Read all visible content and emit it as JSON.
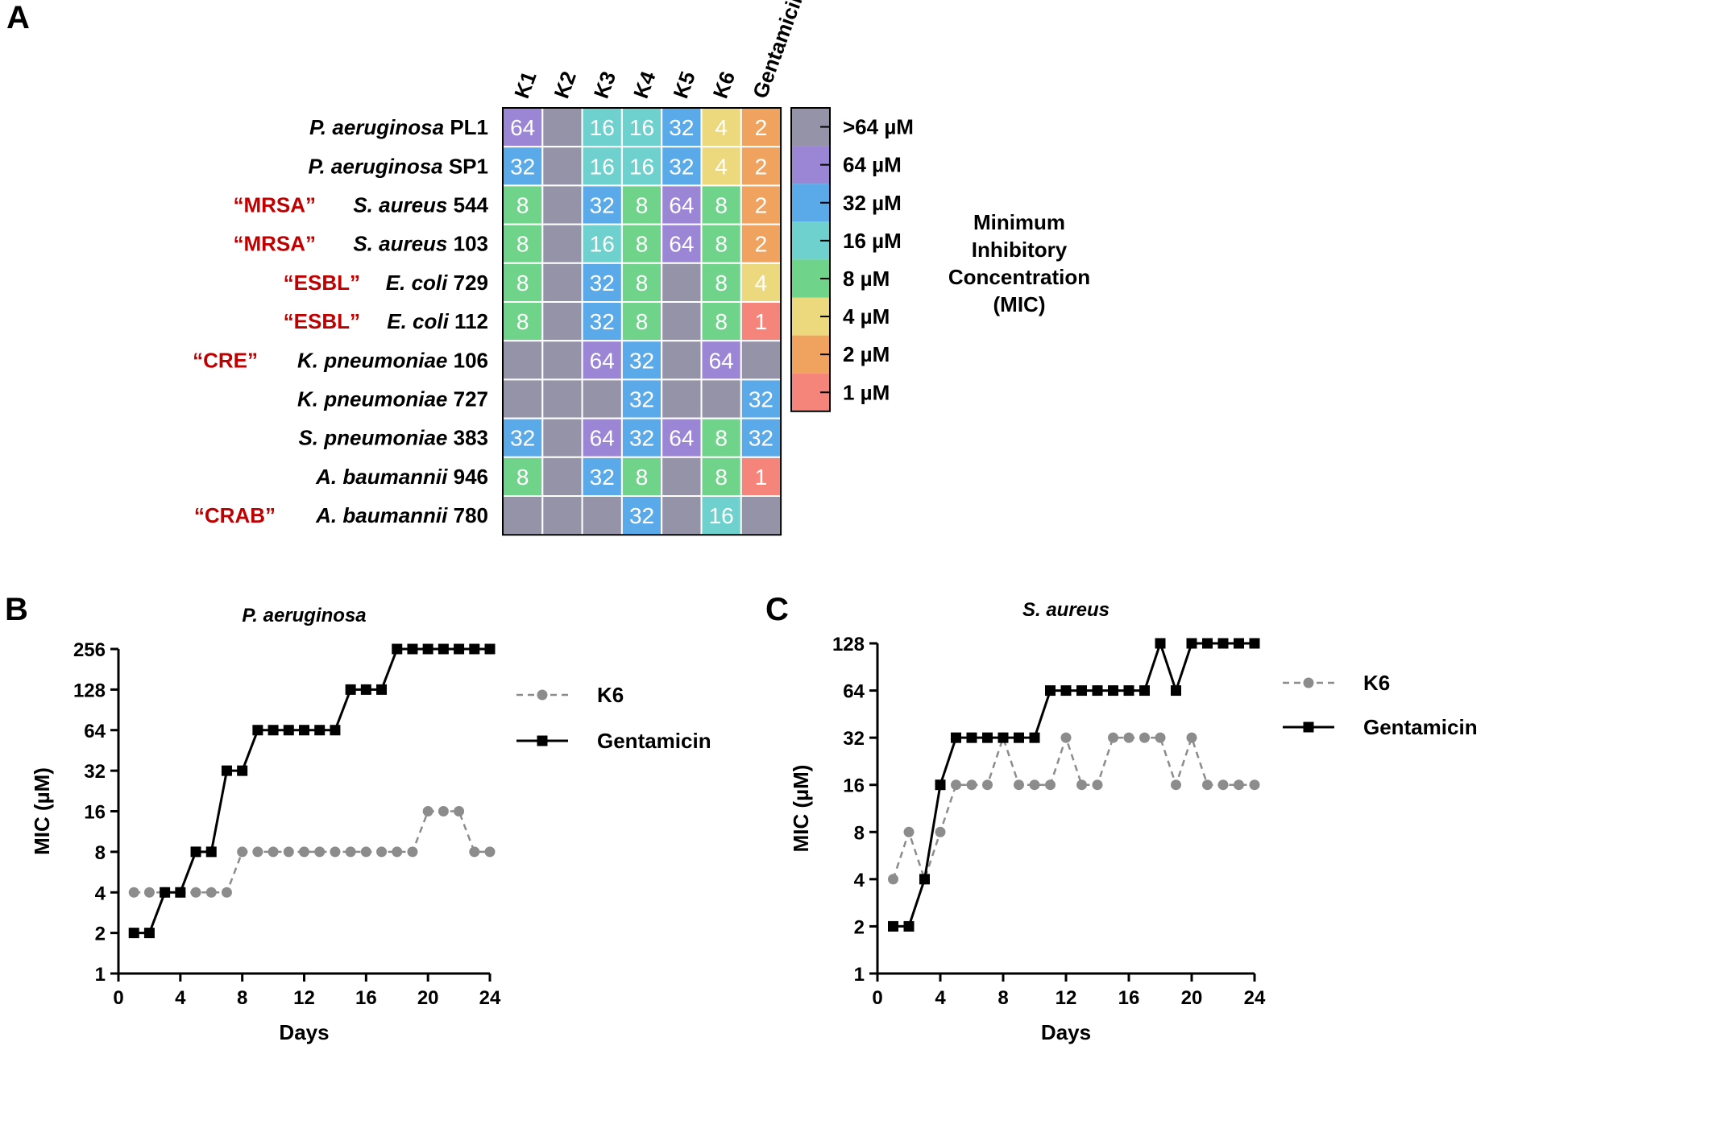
{
  "panels": {
    "a": "A",
    "b": "B",
    "c": "C"
  },
  "chart_data": [
    {
      "type": "heatmap",
      "columns": [
        "K1",
        "K2",
        "K3",
        "K4",
        "K5",
        "K6",
        "Gentamicin"
      ],
      "rows": [
        {
          "tag": "",
          "species": "P. aeruginosa",
          "strain": "PL1",
          "values": [
            "64",
            ">64",
            "16",
            "16",
            "32",
            "4",
            "2"
          ]
        },
        {
          "tag": "",
          "species": "P. aeruginosa",
          "strain": "SP1",
          "values": [
            "32",
            ">64",
            "16",
            "16",
            "32",
            "4",
            "2"
          ]
        },
        {
          "tag": "“MRSA”",
          "species": "S. aureus",
          "strain": "544",
          "values": [
            "8",
            ">64",
            "32",
            "8",
            "64",
            "8",
            "2"
          ]
        },
        {
          "tag": "“MRSA”",
          "species": "S. aureus",
          "strain": "103",
          "values": [
            "8",
            ">64",
            "16",
            "8",
            "64",
            "8",
            "2"
          ]
        },
        {
          "tag": "“ESBL”",
          "species": "E. coli",
          "strain": "729",
          "values": [
            "8",
            ">64",
            "32",
            "8",
            ">64",
            "8",
            "4"
          ]
        },
        {
          "tag": "“ESBL”",
          "species": "E. coli",
          "strain": "112",
          "values": [
            "8",
            ">64",
            "32",
            "8",
            ">64",
            "8",
            "1"
          ]
        },
        {
          "tag": "“CRE”",
          "species": "K. pneumoniae",
          "strain": "106",
          "values": [
            ">64",
            ">64",
            "64",
            "32",
            ">64",
            "64",
            ">64"
          ]
        },
        {
          "tag": "",
          "species": "K. pneumoniae",
          "strain": "727",
          "values": [
            ">64",
            ">64",
            ">64",
            "32",
            ">64",
            ">64",
            "32"
          ]
        },
        {
          "tag": "",
          "species": "S. pneumoniae",
          "strain": "383",
          "values": [
            "32",
            ">64",
            "64",
            "32",
            "64",
            "8",
            "32"
          ]
        },
        {
          "tag": "",
          "species": "A. baumannii",
          "strain": "946",
          "values": [
            "8",
            ">64",
            "32",
            "8",
            ">64",
            "8",
            "1"
          ]
        },
        {
          "tag": "“CRAB”",
          "species": "A. baumannii",
          "strain": "780",
          "values": [
            ">64",
            ">64",
            ">64",
            "32",
            ">64",
            "16",
            ">64"
          ]
        }
      ],
      "legend": [
        {
          "label": ">64 µM",
          "key": ">64",
          "color": "#9593a8"
        },
        {
          "label": "64 µM",
          "key": "64",
          "color": "#9b86d6"
        },
        {
          "label": "32 µM",
          "key": "32",
          "color": "#5aaaea"
        },
        {
          "label": "16 µM",
          "key": "16",
          "color": "#6ed1cd"
        },
        {
          "label": "8 µM",
          "key": "8",
          "color": "#6fd48a"
        },
        {
          "label": "4 µM",
          "key": "4",
          "color": "#ecd97e"
        },
        {
          "label": "2 µM",
          "key": "2",
          "color": "#f0a35e"
        },
        {
          "label": "1 µM",
          "key": "1",
          "color": "#f5857a"
        }
      ],
      "legend_title": [
        "Minimum",
        "Inhibitory",
        "Concentration",
        "(MIC)"
      ],
      "tag_color": "#c00000"
    },
    {
      "type": "line",
      "title": "P. aeruginosa",
      "xlabel": "Days",
      "ylabel": "MIC (µM)",
      "xlim": [
        0,
        24
      ],
      "xticks": [
        0,
        4,
        8,
        12,
        16,
        20,
        24
      ],
      "yscale": "log2",
      "ylim": [
        1,
        256
      ],
      "yticks": [
        1,
        2,
        4,
        8,
        16,
        32,
        64,
        128,
        256
      ],
      "series": [
        {
          "name": "K6",
          "color": "#8c8c8c",
          "style": "dashed",
          "marker": "circle",
          "x": [
            1,
            2,
            3,
            4,
            5,
            6,
            7,
            8,
            9,
            10,
            11,
            12,
            13,
            14,
            15,
            16,
            17,
            18,
            19,
            20,
            21,
            22,
            23,
            24
          ],
          "y": [
            4,
            4,
            4,
            4,
            4,
            4,
            4,
            8,
            8,
            8,
            8,
            8,
            8,
            8,
            8,
            8,
            8,
            8,
            8,
            16,
            16,
            16,
            8,
            8
          ]
        },
        {
          "name": "Gentamicin",
          "color": "#000000",
          "style": "solid",
          "marker": "square",
          "x": [
            1,
            2,
            3,
            4,
            5,
            6,
            7,
            8,
            9,
            10,
            11,
            12,
            13,
            14,
            15,
            16,
            17,
            18,
            19,
            20,
            21,
            22,
            23,
            24
          ],
          "y": [
            2,
            2,
            4,
            4,
            8,
            8,
            32,
            32,
            64,
            64,
            64,
            64,
            64,
            64,
            128,
            128,
            128,
            256,
            256,
            256,
            256,
            256,
            256,
            256
          ]
        }
      ]
    },
    {
      "type": "line",
      "title": "S. aureus",
      "xlabel": "Days",
      "ylabel": "MIC (µM)",
      "xlim": [
        0,
        24
      ],
      "xticks": [
        0,
        4,
        8,
        12,
        16,
        20,
        24
      ],
      "yscale": "log2",
      "ylim": [
        1,
        128
      ],
      "yticks": [
        1,
        2,
        4,
        8,
        16,
        32,
        64,
        128
      ],
      "series": [
        {
          "name": "K6",
          "color": "#8c8c8c",
          "style": "dashed",
          "marker": "circle",
          "x": [
            1,
            2,
            3,
            4,
            5,
            6,
            7,
            8,
            9,
            10,
            11,
            12,
            13,
            14,
            15,
            16,
            17,
            18,
            19,
            20,
            21,
            22,
            23,
            24
          ],
          "y": [
            4,
            8,
            4,
            8,
            16,
            16,
            16,
            32,
            16,
            16,
            16,
            32,
            16,
            16,
            32,
            32,
            32,
            32,
            16,
            32,
            16,
            16,
            16,
            16
          ]
        },
        {
          "name": "Gentamicin",
          "color": "#000000",
          "style": "solid",
          "marker": "square",
          "x": [
            1,
            2,
            3,
            4,
            5,
            6,
            7,
            8,
            9,
            10,
            11,
            12,
            13,
            14,
            15,
            16,
            17,
            18,
            19,
            20,
            21,
            22,
            23,
            24
          ],
          "y": [
            2,
            2,
            4,
            16,
            32,
            32,
            32,
            32,
            32,
            32,
            64,
            64,
            64,
            64,
            64,
            64,
            64,
            128,
            64,
            128,
            128,
            128,
            128,
            128
          ]
        }
      ]
    }
  ]
}
